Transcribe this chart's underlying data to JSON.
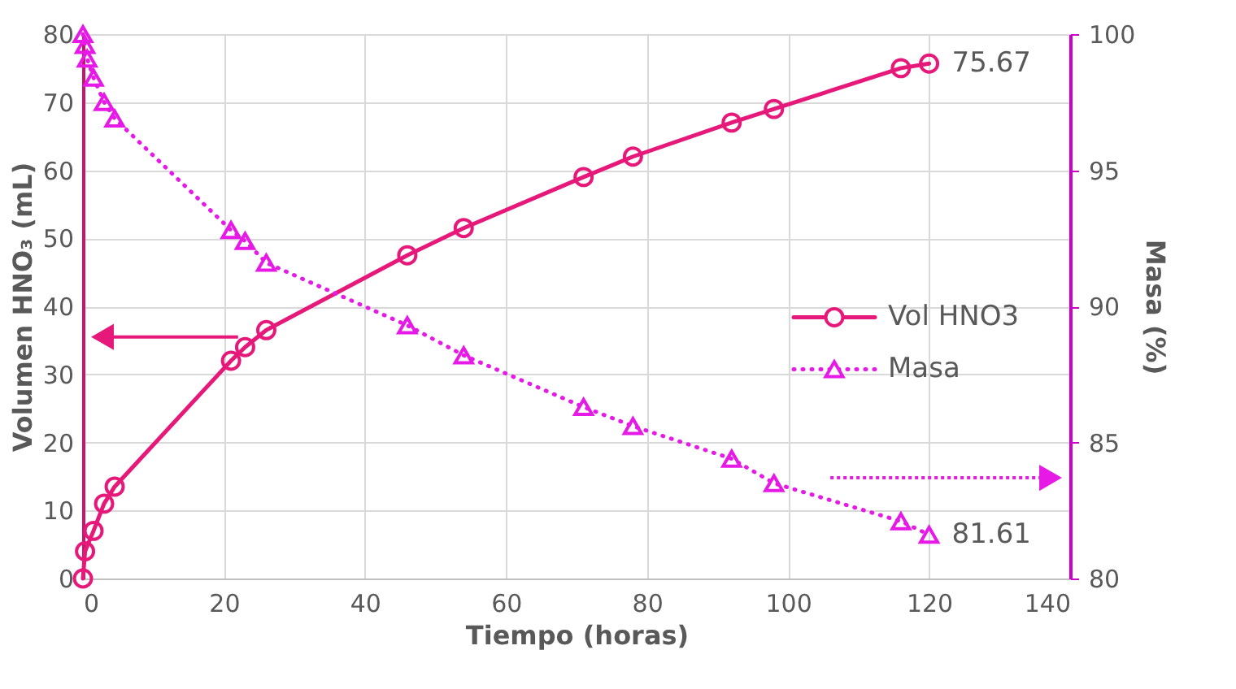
{
  "chart_data": {
    "type": "line",
    "xlabel": "Tiempo (horas)",
    "ylabel": "Volumen HNO₃ (mL)",
    "y2label": "Masa (%)",
    "xlim": [
      0,
      140
    ],
    "xticks": [
      0,
      20,
      40,
      60,
      80,
      100,
      120,
      140
    ],
    "ylim": [
      0,
      80
    ],
    "yticks": [
      0,
      10,
      20,
      30,
      40,
      50,
      60,
      70,
      80
    ],
    "y2lim": [
      80,
      100
    ],
    "y2ticks": [
      80,
      85,
      90,
      95,
      100
    ],
    "grid": true,
    "legend": "right",
    "series": [
      {
        "name": "Vol HNO3",
        "color": "#e6197a",
        "marker": "circle",
        "line_style": "solid",
        "x": [
          0,
          0.3,
          1.5,
          3,
          4.5,
          21,
          23,
          26,
          46,
          54,
          71,
          78,
          92,
          98,
          116,
          120
        ],
        "values": [
          0,
          4,
          7,
          11,
          13.5,
          32,
          34,
          36.5,
          47.5,
          51.5,
          59,
          62,
          67,
          69,
          75,
          75.67
        ],
        "value_labels": [
          null,
          null,
          null,
          null,
          null,
          null,
          null,
          null,
          null,
          null,
          null,
          null,
          null,
          null,
          null,
          "75.67"
        ]
      },
      {
        "name": "Masa",
        "color": "#e619e6",
        "marker": "triangle",
        "line_style": "dotted",
        "axis": "y2",
        "x": [
          0,
          0.3,
          0.6,
          1.5,
          3,
          4.5,
          21,
          23,
          26,
          46,
          54,
          71,
          78,
          92,
          98,
          116,
          120
        ],
        "values": [
          100,
          99.6,
          99.1,
          98.4,
          97.5,
          96.9,
          92.8,
          92.4,
          91.6,
          89.3,
          88.2,
          86.3,
          85.6,
          84.4,
          83.5,
          82.1,
          81.61
        ],
        "value_labels": [
          null,
          null,
          null,
          null,
          null,
          null,
          null,
          null,
          null,
          null,
          null,
          null,
          null,
          null,
          null,
          null,
          "81.61"
        ]
      }
    ]
  }
}
